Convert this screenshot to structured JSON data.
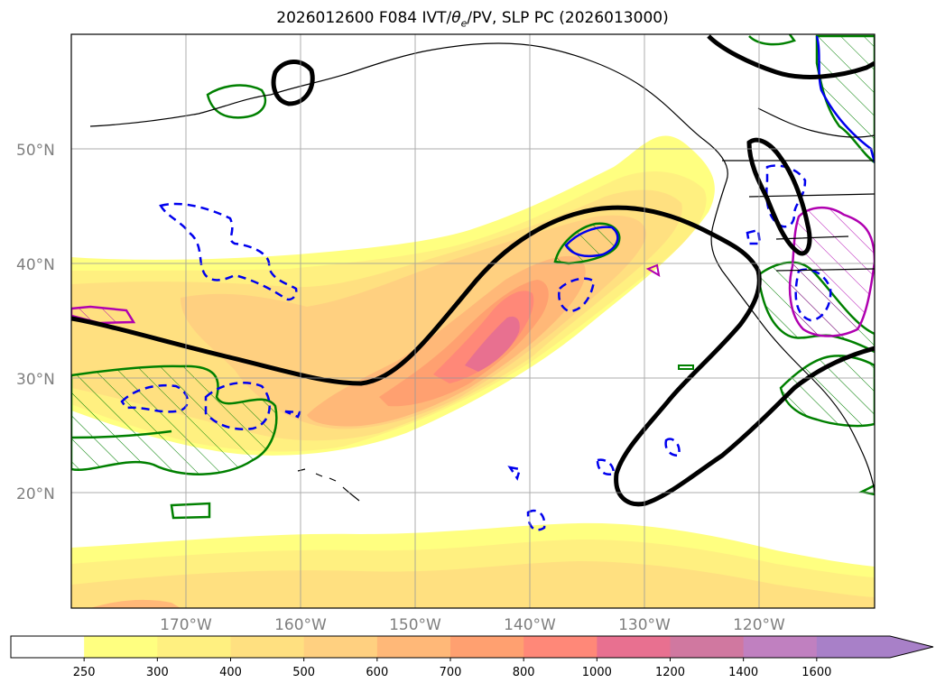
{
  "title": {
    "prefix": "2026012600 F084 IVT/",
    "theta": "θ",
    "theta_sub": "e",
    "suffix": "/PV, SLP PC (2026013000)"
  },
  "map": {
    "lat_labels": [
      "50°N",
      "40°N",
      "30°N",
      "20°N"
    ],
    "lon_labels": [
      "170°W",
      "160°W",
      "150°W",
      "140°W",
      "130°W",
      "120°W"
    ]
  },
  "colorbar": {
    "ticks": [
      "250",
      "300",
      "400",
      "500",
      "600",
      "700",
      "800",
      "1000",
      "1200",
      "1400",
      "1600"
    ],
    "colors": [
      "#ffffff",
      "#ffff80",
      "#fff080",
      "#ffe080",
      "#ffd080",
      "#ffb878",
      "#ffa070",
      "#ff8878",
      "#e87090",
      "#d078a0",
      "#c080c0",
      "#a880c8"
    ]
  }
}
